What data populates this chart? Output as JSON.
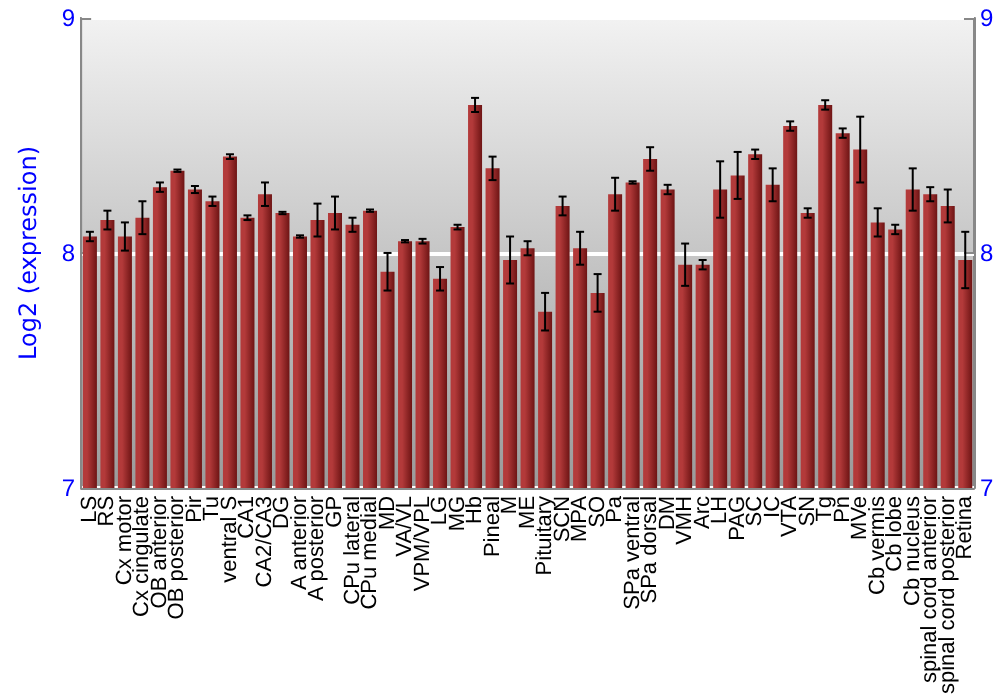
{
  "chart_data": {
    "type": "bar",
    "ylabel": "Log2 (expression)",
    "categories": [
      "LS",
      "RS",
      "Cx motor",
      "Cx cingulate",
      "OB anterior",
      "OB posterior",
      "Pir",
      "Tu",
      "ventral S",
      "CA1",
      "CA2/CA3",
      "DG",
      "A anterior",
      "A posterior",
      "GP",
      "CPu lateral",
      "CPu medial",
      "MD",
      "VA/VL",
      "VPM/VPL",
      "LG",
      "MG",
      "Hb",
      "Pineal",
      "M",
      "ME",
      "Pituitary",
      "SCN",
      "MPA",
      "SO",
      "Pa",
      "SPa ventral",
      "SPa dorsal",
      "DM",
      "VMH",
      "Arc",
      "LH",
      "PAG",
      "SC",
      "IC",
      "VTA",
      "SN",
      "Tg",
      "Pn",
      "MVe",
      "Cb vermis",
      "Cb lobe",
      "Cb nucleus",
      "spinal cord anterior",
      "spinal cord posterior",
      "Retina"
    ],
    "values": [
      8.07,
      8.14,
      8.07,
      8.15,
      8.28,
      8.35,
      8.27,
      8.22,
      8.41,
      8.15,
      8.25,
      8.17,
      8.07,
      8.14,
      8.17,
      8.12,
      8.18,
      7.92,
      8.05,
      8.05,
      7.89,
      8.11,
      8.63,
      8.36,
      7.97,
      8.02,
      7.75,
      8.2,
      8.02,
      7.83,
      8.25,
      8.3,
      8.4,
      8.27,
      7.95,
      7.95,
      8.27,
      8.33,
      8.42,
      8.29,
      8.54,
      8.17,
      8.63,
      8.51,
      8.44,
      8.13,
      8.1,
      8.27,
      8.25,
      8.2,
      7.97
    ],
    "errors": [
      0.02,
      0.04,
      0.06,
      0.07,
      0.02,
      0.005,
      0.015,
      0.02,
      0.01,
      0.01,
      0.05,
      0.005,
      0.005,
      0.07,
      0.07,
      0.03,
      0.005,
      0.08,
      0.005,
      0.01,
      0.05,
      0.01,
      0.03,
      0.05,
      0.1,
      0.03,
      0.08,
      0.04,
      0.07,
      0.08,
      0.07,
      0.005,
      0.05,
      0.02,
      0.09,
      0.02,
      0.12,
      0.1,
      0.02,
      0.07,
      0.02,
      0.02,
      0.02,
      0.02,
      0.14,
      0.06,
      0.02,
      0.09,
      0.03,
      0.07,
      0.12
    ],
    "color": "#b33a3a",
    "ylim": [
      7,
      9
    ],
    "yticks": [
      7,
      8,
      9
    ],
    "y2lim": [
      7,
      9
    ],
    "y2ticks": [
      7,
      8,
      9
    ],
    "grid": "y"
  }
}
